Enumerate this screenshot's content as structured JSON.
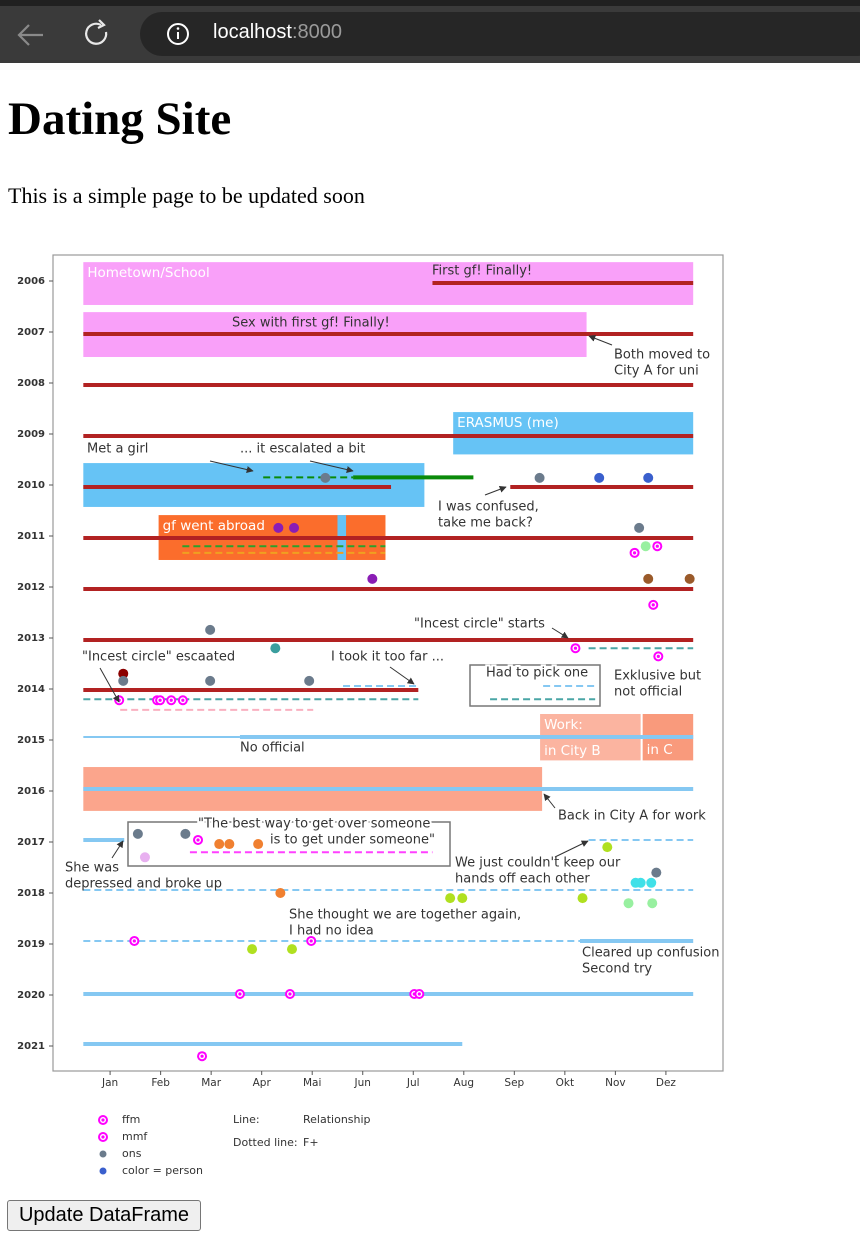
{
  "browser": {
    "host": "localhost",
    "port": ":8000"
  },
  "header": {
    "title": "Dating Site",
    "subtitle": "This is a simple page to be updated soon"
  },
  "chart_data": {
    "type": "timeline",
    "xlim": [
      -1.13,
      12.13
    ],
    "ylim": [
      2005.49,
      2021.49
    ],
    "y_inverted": true,
    "xticks": [
      {
        "value": 0,
        "label": "Jan"
      },
      {
        "value": 1,
        "label": "Feb"
      },
      {
        "value": 2,
        "label": "Mar"
      },
      {
        "value": 3,
        "label": "Apr"
      },
      {
        "value": 4,
        "label": "Mai"
      },
      {
        "value": 5,
        "label": "Jun"
      },
      {
        "value": 6,
        "label": "Jul"
      },
      {
        "value": 7,
        "label": "Aug"
      },
      {
        "value": 8,
        "label": "Sep"
      },
      {
        "value": 9,
        "label": "Okt"
      },
      {
        "value": 10,
        "label": "Nov"
      },
      {
        "value": 11,
        "label": "Dez"
      }
    ],
    "yticks": [
      2006,
      2007,
      2008,
      2009,
      2010,
      2011,
      2012,
      2013,
      2014,
      2015,
      2016,
      2017,
      2018,
      2019,
      2020,
      2021
    ],
    "spans": [
      {
        "label": [
          "Hometown/School"
        ],
        "color": "#f9a0f9",
        "x": [
          -0.53,
          11.54
        ],
        "y": [
          2005.63,
          2006.47
        ]
      },
      {
        "color": "#f9a0f9",
        "x": [
          -0.53,
          9.43
        ],
        "y": [
          2006.61,
          2007.49
        ]
      },
      {
        "label": [
          "ERASMUS (me)"
        ],
        "color": "#66c3f5",
        "x": [
          6.79,
          11.54
        ],
        "y": [
          2008.57,
          2009.4
        ]
      },
      {
        "color": "#66c3f5",
        "x": [
          -0.53,
          6.22
        ],
        "y": [
          2009.57,
          2010.43
        ]
      },
      {
        "label": [
          "gf went abroad"
        ],
        "color": "#fb6d2c",
        "x": [
          0.96,
          5.45
        ],
        "y": [
          2010.59,
          2011.47
        ]
      },
      {
        "color": "#66c3f5",
        "x": [
          4.5,
          4.67
        ],
        "y": [
          2010.59,
          2011.47
        ]
      },
      {
        "label": [
          "Work:",
          "in City B"
        ],
        "color": "#fbb4a0",
        "x": [
          8.51,
          10.5
        ],
        "y": [
          2014.49,
          2015.4
        ]
      },
      {
        "label": [
          "in C"
        ],
        "color": "#f99a7c",
        "x": [
          10.54,
          11.54
        ],
        "y": [
          2014.49,
          2015.4
        ]
      },
      {
        "color": "#fba58c",
        "x": [
          -0.53,
          8.55
        ],
        "y": [
          2015.53,
          2016.39
        ]
      }
    ],
    "lines": [
      {
        "color": "#b22222",
        "style": "solid",
        "x": [
          6.38,
          11.54
        ],
        "y": 2006.04
      },
      {
        "color": "#b22222",
        "style": "solid",
        "x": [
          -0.53,
          11.54
        ],
        "y": 2007.04
      },
      {
        "color": "#b22222",
        "style": "solid",
        "x": [
          -0.53,
          11.54
        ],
        "y": 2008.04
      },
      {
        "color": "#b22222",
        "style": "solid",
        "x": [
          -0.53,
          11.54
        ],
        "y": 2009.04
      },
      {
        "color": "#b22222",
        "style": "solid",
        "x": [
          -0.53,
          5.56
        ],
        "y": 2010.04
      },
      {
        "color": "#b22222",
        "style": "solid",
        "x": [
          7.92,
          11.54
        ],
        "y": 2010.04
      },
      {
        "color": "#b22222",
        "style": "solid",
        "x": [
          -0.53,
          11.54
        ],
        "y": 2011.04
      },
      {
        "color": "#b22222",
        "style": "solid",
        "x": [
          -0.53,
          11.54
        ],
        "y": 2012.04
      },
      {
        "color": "#b22222",
        "style": "solid",
        "x": [
          -0.53,
          11.54
        ],
        "y": 2013.04
      },
      {
        "color": "#b22222",
        "style": "solid",
        "x": [
          -0.53,
          6.1
        ],
        "y": 2014.02
      },
      {
        "color": "#0a8a0a",
        "style": "solid",
        "x": [
          4.81,
          7.19
        ],
        "y": 2009.85
      },
      {
        "color": "#0a8a0a",
        "style": "dashed",
        "x": [
          3.03,
          4.81
        ],
        "y": 2009.85
      },
      {
        "color": "#85c8f2",
        "style": "thin",
        "x": [
          -0.53,
          2.57
        ],
        "y": 2014.94
      },
      {
        "color": "#85c8f2",
        "style": "solid",
        "x": [
          2.57,
          11.54
        ],
        "y": 2014.94
      },
      {
        "color": "#85c8f2",
        "style": "solid",
        "x": [
          -0.53,
          11.54
        ],
        "y": 2015.96
      },
      {
        "color": "#85c8f2",
        "style": "solid",
        "x": [
          -0.53,
          0.28
        ],
        "y": 2016.96
      },
      {
        "color": "#85c8f2",
        "style": "solid",
        "x": [
          9.3,
          11.54
        ],
        "y": 2018.94
      },
      {
        "color": "#85c8f2",
        "style": "solid",
        "x": [
          -0.53,
          11.54
        ],
        "y": 2019.98
      },
      {
        "color": "#85c8f2",
        "style": "solid",
        "x": [
          -0.53,
          6.97
        ],
        "y": 2020.96
      },
      {
        "color": "#2ca02c",
        "style": "dashed",
        "x": [
          1.43,
          5.45
        ],
        "y": 2011.2
      },
      {
        "color": "#f0a020",
        "style": "dashed",
        "x": [
          1.43,
          5.45
        ],
        "y": 2011.33
      },
      {
        "color": "#4aa6a6",
        "style": "dashed",
        "x": [
          9.47,
          11.54
        ],
        "y": 2013.2
      },
      {
        "color": "#85c8f2",
        "style": "dashed",
        "x": [
          4.61,
          6.1
        ],
        "y": 2013.94
      },
      {
        "color": "#4aa6a6",
        "style": "dashed",
        "x": [
          -0.53,
          6.1
        ],
        "y": 2014.2
      },
      {
        "color": "#f9b0c0",
        "style": "dashed",
        "x": [
          0.2,
          4.02
        ],
        "y": 2014.41
      },
      {
        "color": "#85c8f2",
        "style": "dashed",
        "x": [
          8.57,
          9.6
        ],
        "y": 2013.94
      },
      {
        "color": "#4aa6a6",
        "style": "dashed",
        "x": [
          7.52,
          9.6
        ],
        "y": 2014.2
      },
      {
        "color": "#ff40ff",
        "style": "dashed",
        "x": [
          1.58,
          6.38
        ],
        "y": 2017.2
      },
      {
        "color": "#85c8f2",
        "style": "dashed",
        "x": [
          9.47,
          11.54
        ],
        "y": 2016.96
      },
      {
        "color": "#85c8f2",
        "style": "dashed",
        "x": [
          -0.53,
          11.54
        ],
        "y": 2017.94
      },
      {
        "color": "#85c8f2",
        "style": "dashed",
        "x": [
          -0.53,
          9.3
        ],
        "y": 2018.94
      }
    ],
    "points": [
      {
        "color": "#6b7b8c",
        "x": 4.26,
        "y": 2009.86
      },
      {
        "color": "#6b7b8c",
        "x": 8.5,
        "y": 2009.86
      },
      {
        "color": "#3a5fcd",
        "x": 9.68,
        "y": 2009.86
      },
      {
        "color": "#3a5fcd",
        "x": 10.65,
        "y": 2009.86
      },
      {
        "color": "#8a1db5",
        "x": 3.33,
        "y": 2010.84
      },
      {
        "color": "#8a1db5",
        "x": 3.64,
        "y": 2010.84
      },
      {
        "color": "#6b7b8c",
        "x": 10.47,
        "y": 2010.84
      },
      {
        "color": "#ff00ff",
        "marker": "mmf",
        "x": 10.38,
        "y": 2011.33
      },
      {
        "color": "#ff00ff",
        "marker": "ffm",
        "x": 10.83,
        "y": 2011.2
      },
      {
        "color": "#98f0a0",
        "x": 10.6,
        "y": 2011.2
      },
      {
        "color": "#8a1db5",
        "x": 5.19,
        "y": 2011.84
      },
      {
        "color": "#9a5a2a",
        "x": 10.65,
        "y": 2011.84
      },
      {
        "color": "#9a5a2a",
        "x": 11.47,
        "y": 2011.84
      },
      {
        "color": "#ff00ff",
        "marker": "mmf",
        "x": 10.75,
        "y": 2012.35
      },
      {
        "color": "#6b7b8c",
        "x": 1.98,
        "y": 2012.84
      },
      {
        "color": "#ff00ff",
        "marker": "ffm",
        "x": 9.21,
        "y": 2013.2
      },
      {
        "color": "#ff00ff",
        "marker": "mmf",
        "x": 10.85,
        "y": 2013.36
      },
      {
        "color": "#3a9e9e",
        "x": 3.27,
        "y": 2013.2
      },
      {
        "color": "#8b0000",
        "x": 0.26,
        "y": 2013.7
      },
      {
        "color": "#6b7b8c",
        "x": 0.26,
        "y": 2013.84
      },
      {
        "color": "#6b7b8c",
        "x": 1.98,
        "y": 2013.84
      },
      {
        "color": "#6b7b8c",
        "x": 3.94,
        "y": 2013.84
      },
      {
        "color": "#ff00ff",
        "marker": "ffm",
        "x": 0.18,
        "y": 2014.22
      },
      {
        "color": "#ff00ff",
        "marker": "ffm",
        "x": 0.93,
        "y": 2014.22
      },
      {
        "color": "#ff00ff",
        "marker": "mmf",
        "x": 0.99,
        "y": 2014.22
      },
      {
        "color": "#ff00ff",
        "marker": "ffm",
        "x": 1.21,
        "y": 2014.22
      },
      {
        "color": "#ff00ff",
        "marker": "ffm",
        "x": 1.44,
        "y": 2014.22
      },
      {
        "color": "#6b7b8c",
        "x": 0.55,
        "y": 2016.84
      },
      {
        "color": "#6b7b8c",
        "x": 1.49,
        "y": 2016.84
      },
      {
        "color": "#e8b0f0",
        "x": 0.69,
        "y": 2017.3
      },
      {
        "color": "#ff00ff",
        "marker": "mmf",
        "x": 1.74,
        "y": 2016.96
      },
      {
        "color": "#f08030",
        "x": 2.16,
        "y": 2017.04
      },
      {
        "color": "#f08030",
        "x": 2.36,
        "y": 2017.04
      },
      {
        "color": "#f08030",
        "x": 2.93,
        "y": 2017.04
      },
      {
        "color": "#f08030",
        "x": 3.37,
        "y": 2018.0
      },
      {
        "color": "#b0e020",
        "x": 9.84,
        "y": 2017.1
      },
      {
        "color": "#40e0e8",
        "x": 10.4,
        "y": 2017.8
      },
      {
        "color": "#40e0e8",
        "x": 10.5,
        "y": 2017.8
      },
      {
        "color": "#40e0e8",
        "x": 10.71,
        "y": 2017.8
      },
      {
        "color": "#6b7b8c",
        "x": 10.81,
        "y": 2017.6
      },
      {
        "color": "#b0e020",
        "x": 6.73,
        "y": 2018.1
      },
      {
        "color": "#b0e020",
        "x": 6.97,
        "y": 2018.1
      },
      {
        "color": "#b0e020",
        "x": 9.35,
        "y": 2018.1
      },
      {
        "color": "#98f0a0",
        "x": 10.26,
        "y": 2018.2
      },
      {
        "color": "#98f0a0",
        "x": 10.73,
        "y": 2018.2
      },
      {
        "color": "#ff00ff",
        "marker": "mmf",
        "x": 0.48,
        "y": 2018.94
      },
      {
        "color": "#b0e020",
        "x": 2.81,
        "y": 2019.1
      },
      {
        "color": "#b0e020",
        "x": 3.6,
        "y": 2019.1
      },
      {
        "color": "#ff00ff",
        "marker": "mmf",
        "x": 3.98,
        "y": 2018.94
      },
      {
        "color": "#ff00ff",
        "marker": "mmf",
        "x": 2.57,
        "y": 2019.98
      },
      {
        "color": "#ff00ff",
        "marker": "ffm",
        "x": 3.56,
        "y": 2019.98
      },
      {
        "color": "#ff00ff",
        "marker": "ffm",
        "x": 6.02,
        "y": 2019.98
      },
      {
        "color": "#ff00ff",
        "marker": "ffm",
        "x": 6.12,
        "y": 2019.98
      },
      {
        "color": "#ff00ff",
        "marker": "mmf",
        "x": 1.82,
        "y": 2021.2
      }
    ],
    "annotations": [
      [
        "First gf! Finally!"
      ],
      [
        "Sex with first gf! Finally!"
      ],
      [
        "Both moved to",
        "City A for uni"
      ],
      [
        "Met a girl"
      ],
      [
        "... it escalated a bit"
      ],
      [
        "I was confused,",
        "take me back?"
      ],
      [
        "\"Incest circle\" starts"
      ],
      [
        "\"Incest circle\" escaated"
      ],
      [
        "I took it too far ..."
      ],
      [
        "Had to pick one"
      ],
      [
        "Exklusive but",
        "not official"
      ],
      [
        "No official"
      ],
      [
        "Back in City A for work"
      ],
      [
        "\"The best way to get over someone",
        "is to get under someone\""
      ],
      [
        "She was",
        "depressed and broke up"
      ],
      [
        "We just couldn't keep our",
        "hands off each other"
      ],
      [
        "She thought we are together again,",
        "I had no idea"
      ],
      [
        "Cleared up confusion",
        "Second try"
      ]
    ],
    "legend": {
      "markers": [
        {
          "color": "#ff00ff",
          "marker": "ffm",
          "label": "ffm"
        },
        {
          "color": "#ff00ff",
          "marker": "mmf",
          "label": "mmf"
        },
        {
          "color": "#6b7b8c",
          "label": "ons"
        },
        {
          "color": "#3a5fcd",
          "label": "color = person"
        }
      ],
      "lines": [
        [
          "Line:",
          "Relationship"
        ],
        [
          "Dotted line:",
          "F+"
        ]
      ]
    }
  },
  "button": {
    "label": "Update DataFrame"
  }
}
